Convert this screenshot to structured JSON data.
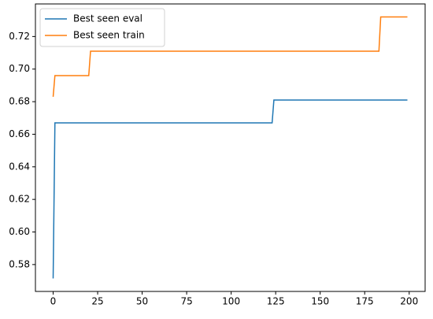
{
  "chart_data": {
    "type": "line",
    "series": [
      {
        "name": "Best seen eval",
        "color": "#1f77b4",
        "x": [
          0,
          1,
          123,
          124,
          199
        ],
        "values": [
          0.5715,
          0.667,
          0.667,
          0.681,
          0.681
        ]
      },
      {
        "name": "Best seen train",
        "color": "#ff7f0e",
        "x": [
          0,
          1,
          20,
          21,
          183,
          184,
          199
        ],
        "values": [
          0.683,
          0.696,
          0.696,
          0.711,
          0.711,
          0.732,
          0.732
        ]
      }
    ],
    "xlim": [
      -9.95,
      208.95
    ],
    "xticks": [
      0,
      25,
      50,
      75,
      100,
      125,
      150,
      175,
      200
    ],
    "ylim": [
      0.5635,
      0.74
    ],
    "yticks": [
      0.58,
      {
        "value": 0.6,
        "label": "0.60"
      },
      0.62,
      0.64,
      0.66,
      0.68,
      {
        "value": 0.7,
        "label": "0.70"
      },
      0.72
    ],
    "legend": "upper left",
    "grid": false
  }
}
